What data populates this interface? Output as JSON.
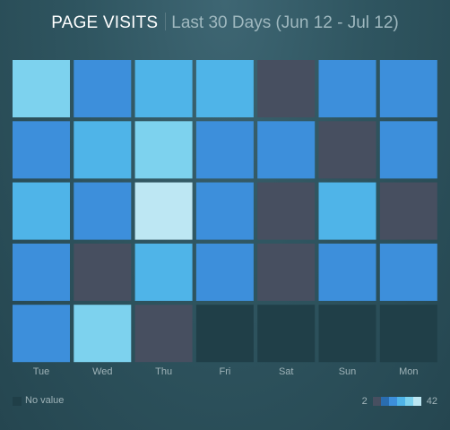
{
  "header": {
    "title": "PAGE VISITS",
    "subtitle": "Last 30 Days (Jun 12 - Jul 12)"
  },
  "chart_data": {
    "type": "heatmap",
    "columns": [
      "Tue",
      "Wed",
      "Thu",
      "Fri",
      "Sat",
      "Sun",
      "Mon"
    ],
    "rows": 5,
    "values": [
      [
        34,
        16,
        24,
        24,
        4,
        16,
        16
      ],
      [
        16,
        24,
        34,
        16,
        16,
        4,
        16
      ],
      [
        24,
        16,
        42,
        16,
        4,
        24,
        4
      ],
      [
        16,
        4,
        24,
        16,
        4,
        16,
        16
      ],
      [
        16,
        30,
        4,
        null,
        null,
        null,
        null
      ]
    ],
    "color_range": [
      2,
      42
    ],
    "colors": {
      "no_value": "#203f48",
      "scale": [
        "#474f60",
        "#2a6db0",
        "#3d8fdb",
        "#4fb4e8",
        "#7dd2ee",
        "#bde7f3"
      ]
    },
    "grid": false,
    "legend": {
      "position": "bottom",
      "no_value_label": "No value",
      "min_label": "2",
      "max_label": "42"
    }
  }
}
